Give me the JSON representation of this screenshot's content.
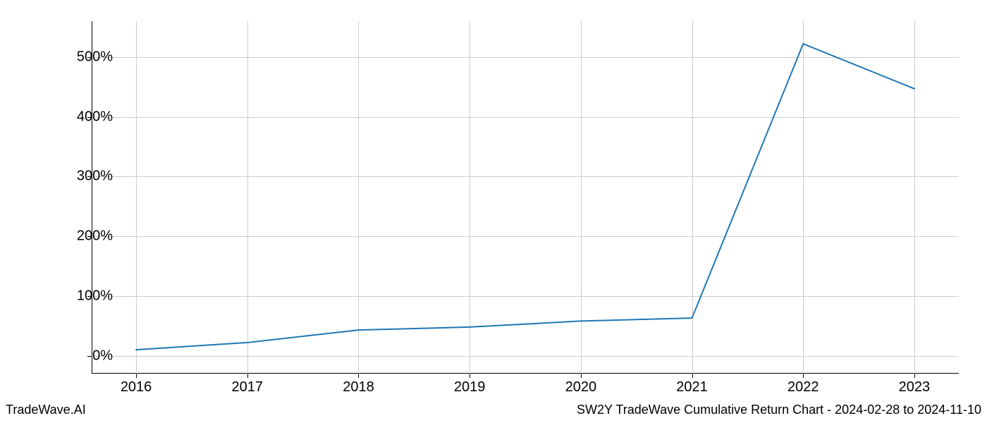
{
  "chart": {
    "type": "line",
    "x_values": [
      2016,
      2017,
      2018,
      2019,
      2020,
      2021,
      2022,
      2023
    ],
    "y_values": [
      10,
      22,
      43,
      48,
      58,
      63,
      522,
      447
    ],
    "line_color": "#1f77b4",
    "line_width": 2,
    "background_color": "#ffffff",
    "grid_color": "#cccccc",
    "axis_color": "#000000",
    "xlim": [
      2015.6,
      2023.4
    ],
    "ylim": [
      -30,
      560
    ],
    "y_ticks": [
      0,
      100,
      200,
      300,
      400,
      500
    ],
    "y_tick_labels": [
      "0%",
      "100%",
      "200%",
      "300%",
      "400%",
      "500%"
    ],
    "x_ticks": [
      2016,
      2017,
      2018,
      2019,
      2020,
      2021,
      2022,
      2023
    ],
    "x_tick_labels": [
      "2016",
      "2017",
      "2018",
      "2019",
      "2020",
      "2021",
      "2022",
      "2023"
    ],
    "tick_fontsize": 20
  },
  "footer": {
    "left": "TradeWave.AI",
    "right": "SW2Y TradeWave Cumulative Return Chart - 2024-02-28 to 2024-11-10",
    "fontsize": 18,
    "color": "#000000"
  }
}
